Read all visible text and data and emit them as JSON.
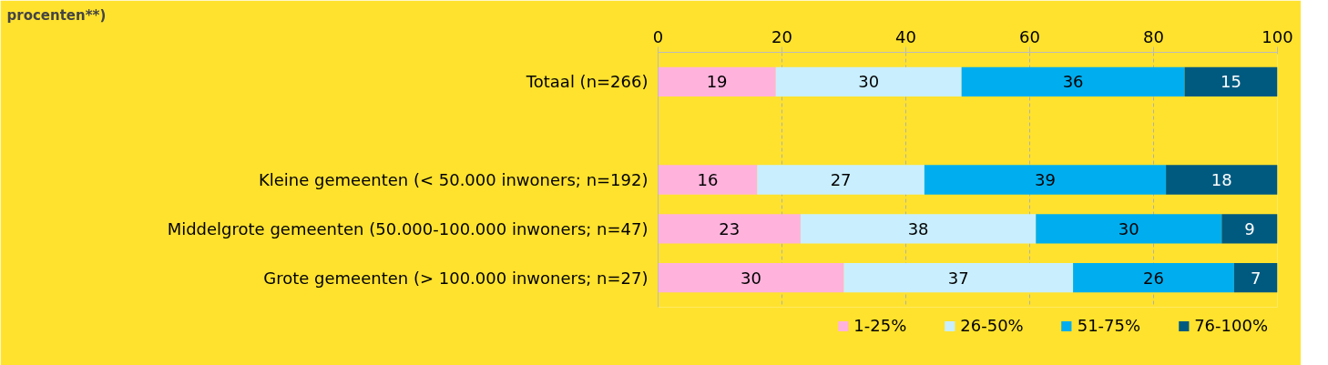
{
  "chart_data": {
    "type": "bar",
    "orientation": "horizontal",
    "stacked": true,
    "title": "procenten**)",
    "categories": [
      "Totaal (n=266)",
      null,
      "Kleine gemeenten (< 50.000 inwoners; n=192)",
      "Middelgrote gemeenten (50.000-100.000 inwoners; n=47)",
      "Grote gemeenten (> 100.000 inwoners; n=27)"
    ],
    "series": [
      {
        "name": "1-25%",
        "color": "#ffb3dc",
        "values": [
          19,
          null,
          16,
          23,
          30
        ]
      },
      {
        "name": "26-50%",
        "color": "#c9efff",
        "values": [
          30,
          null,
          27,
          38,
          37
        ]
      },
      {
        "name": "51-75%",
        "color": "#00aeef",
        "values": [
          36,
          null,
          39,
          30,
          26
        ]
      },
      {
        "name": "76-100%",
        "color": "#005a80",
        "values": [
          15,
          null,
          18,
          9,
          7
        ]
      }
    ],
    "xlim": [
      0,
      100
    ],
    "xticks": [
      0,
      20,
      40,
      60,
      80,
      100
    ],
    "grid": "x",
    "legend": "bottom",
    "data_labels": true
  }
}
